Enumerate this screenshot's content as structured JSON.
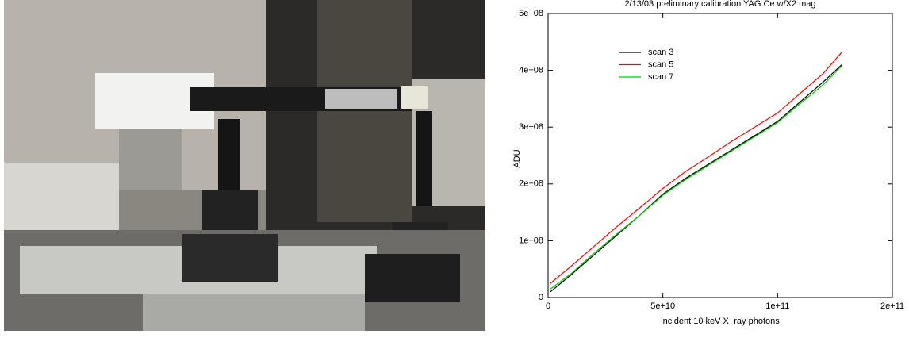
{
  "chart_data": {
    "type": "line",
    "title": "2/13/03 preliminary calibration YAG:Ce w/X2 mag",
    "x_label": "incident 10 keV X−ray photons",
    "y_label": "ADU",
    "x": [
      1000000000,
      10000000000,
      20000000000,
      30000000000,
      40000000000,
      50000000000,
      60000000000,
      70000000000,
      80000000000,
      90000000000,
      100000000000,
      110000000000,
      120000000000,
      128000000000
    ],
    "series": [
      {
        "name": "scan 3",
        "color": "#000000",
        "values": [
          10000000,
          40000000,
          75000000,
          110000000,
          145000000,
          182000000,
          210000000,
          235000000,
          260000000,
          285000000,
          310000000,
          345000000,
          380000000,
          410000000
        ]
      },
      {
        "name": "scan 5",
        "color": "#ff0000",
        "values": [
          25000000,
          55000000,
          90000000,
          125000000,
          158000000,
          192000000,
          222000000,
          248000000,
          275000000,
          300000000,
          325000000,
          360000000,
          395000000,
          432000000
        ]
      },
      {
        "name": "scan 7",
        "color": "#00cc00",
        "values": [
          15000000,
          42000000,
          78000000,
          112000000,
          145000000,
          180000000,
          208000000,
          233000000,
          258000000,
          283000000,
          308000000,
          342000000,
          375000000,
          408000000
        ]
      }
    ],
    "xlim": [
      0,
      150000000000
    ],
    "xticks": [
      0,
      {
        "value": 50000000000,
        "label": "5e+10"
      },
      {
        "value": 100000000000,
        "label": "1e+11"
      },
      {
        "value": 150000000000,
        "label": "2e+11"
      }
    ],
    "ylim": [
      0,
      500000000
    ],
    "yticks": [
      0,
      {
        "value": 100000000,
        "label": "1e+08"
      },
      {
        "value": 200000000,
        "label": "2e+08"
      },
      {
        "value": 300000000,
        "label": "3e+08"
      },
      {
        "value": 400000000,
        "label": "4e+08"
      },
      {
        "value": 500000000,
        "label": "5e+08"
      }
    ],
    "legend": "upper left"
  }
}
